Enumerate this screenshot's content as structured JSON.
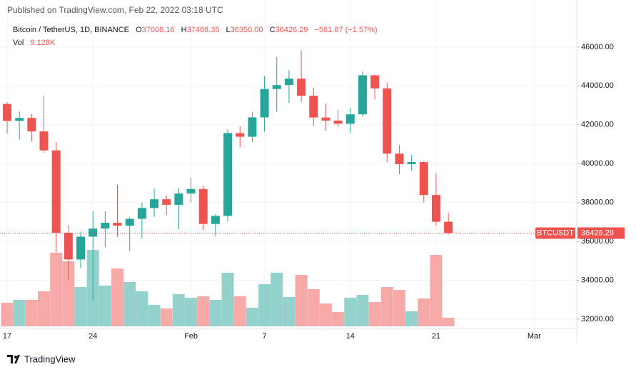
{
  "chart_data": {
    "type": "candlestick",
    "title": "Published on TradingView.com, Feb 22, 2022 03:18 UTC",
    "legend": {
      "symbol": "Bitcoin / TetherUS, 1D, BINANCE",
      "o_key": "O",
      "o": "37008.16",
      "h_key": "H",
      "h": "37468.35",
      "l_key": "L",
      "l": "36350.00",
      "c_key": "C",
      "c": "36426.29",
      "change": "−581.87 (−1.57%)",
      "vol_key": "Vol",
      "vol": "9.128K"
    },
    "up_color": "#26a69a",
    "down_color": "#ef5350",
    "volume_up_color": "#93d2cc",
    "volume_down_color": "#f7a9a7",
    "open": [
      43071,
      42201,
      42352,
      41660,
      40680,
      36445,
      35071,
      36244,
      36660,
      36958,
      36809,
      37160,
      37716,
      38166,
      37881,
      38466,
      38694,
      36896,
      37311,
      41571,
      41382,
      42380,
      43839,
      44043,
      44373,
      43495,
      42373,
      42217,
      42053,
      42535,
      44544,
      43873,
      40515,
      39974,
      40079,
      38386,
      37008.16
    ],
    "high": [
      43176,
      42691,
      42559,
      43505,
      41100,
      36835,
      36499,
      37550,
      37545,
      38919,
      37234,
      38000,
      38720,
      38359,
      38744,
      39265,
      38855,
      37387,
      41772,
      41913,
      42656,
      44500,
      45492,
      44799,
      45821,
      43920,
      43079,
      42760,
      42876,
      44751,
      44580,
      44164,
      40959,
      40444,
      40125,
      39494,
      37468.35
    ],
    "low": [
      41540,
      41250,
      41138,
      40553,
      35440,
      34008,
      34601,
      32917,
      35701,
      36234,
      35507,
      36155,
      37268,
      37351,
      36632,
      38000,
      36586,
      36250,
      37026,
      40843,
      41116,
      41645,
      42666,
      43117,
      43174,
      41938,
      41688,
      41870,
      41570,
      42427,
      43307,
      40073,
      39450,
      39639,
      38000,
      36800,
      36350
    ],
    "close": [
      42201,
      42352,
      41660,
      40680,
      36445,
      35071,
      36244,
      36660,
      36958,
      36809,
      37160,
      37716,
      38166,
      37881,
      38466,
      38694,
      36896,
      37311,
      41574,
      41383,
      42380,
      43840,
      44042,
      44372,
      43495,
      42373,
      42217,
      42053,
      42535,
      44544,
      43873,
      40515,
      39974,
      40079,
      38386,
      37008,
      36426.29
    ],
    "volume": [
      25080,
      28120,
      28120,
      37240,
      78280,
      69160,
      41800,
      81320,
      43320,
      61560,
      47120,
      37240,
      22800,
      19000,
      34200,
      30400,
      31920,
      28120,
      57000,
      31920,
      19760,
      44840,
      57000,
      31160,
      54720,
      39520,
      24320,
      15200,
      30400,
      33440,
      25840,
      41800,
      38760,
      15960,
      29640,
      76000,
      9128
    ],
    "last_price": {
      "symbol": "BTCUSDT",
      "value": 36426.29,
      "label": "36426.29"
    },
    "ylim": [
      31520,
      48420
    ],
    "yticks": [
      {
        "value": 32000,
        "label": "32000.00"
      },
      {
        "value": 34000,
        "label": "34000.00"
      },
      {
        "value": 36000,
        "label": "36000.00"
      },
      {
        "value": 38000,
        "label": "38000.00"
      },
      {
        "value": 40000,
        "label": "40000.00"
      },
      {
        "value": 42000,
        "label": "42000.00"
      },
      {
        "value": 44000,
        "label": "44000.00"
      },
      {
        "value": 46000,
        "label": "46000.00"
      }
    ],
    "xticks": [
      {
        "value": 0,
        "label": "17"
      },
      {
        "value": 7,
        "label": "24"
      },
      {
        "value": 15,
        "label": "Feb"
      },
      {
        "value": 21,
        "label": "7"
      },
      {
        "value": 28,
        "label": "14"
      },
      {
        "value": 35,
        "label": "21"
      },
      {
        "value": 43,
        "label": "Mar"
      }
    ],
    "grid": true,
    "brand": "TradingView"
  }
}
